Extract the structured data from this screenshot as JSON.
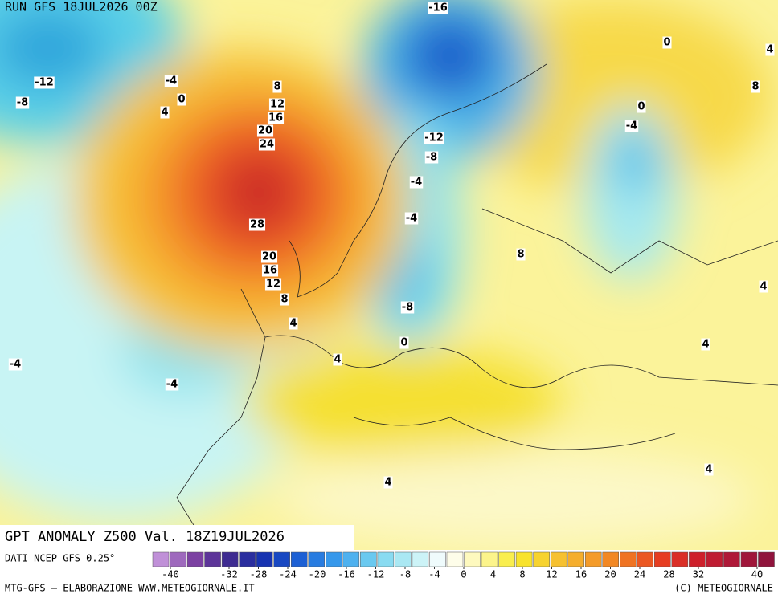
{
  "header": {
    "run": "RUN GFS 18JUL2026 00Z"
  },
  "title": "GPT ANOMALY Z500 Val. 18Z19JUL2026",
  "source": "DATI NCEP GFS 0.25°",
  "footer": {
    "left": "MTG-GFS — ELABORAZIONE WWW.METEOGIORNALE.IT",
    "right": "(C) METEOGIORNALE"
  },
  "colorbar": {
    "ticks": [
      -40,
      -32,
      -28,
      -24,
      -20,
      -16,
      -12,
      -8,
      -4,
      0,
      4,
      8,
      12,
      16,
      20,
      24,
      28,
      32,
      40
    ]
  },
  "contour_labels": [
    -16,
    0,
    -12,
    -4,
    8,
    -8,
    0,
    12,
    4,
    16,
    0,
    -4,
    20,
    -12,
    24,
    -8,
    -4,
    28,
    -4,
    8,
    20,
    16,
    12,
    8,
    -8,
    4,
    0,
    4,
    -4,
    -4,
    4,
    4,
    8,
    4,
    4,
    4
  ]
}
